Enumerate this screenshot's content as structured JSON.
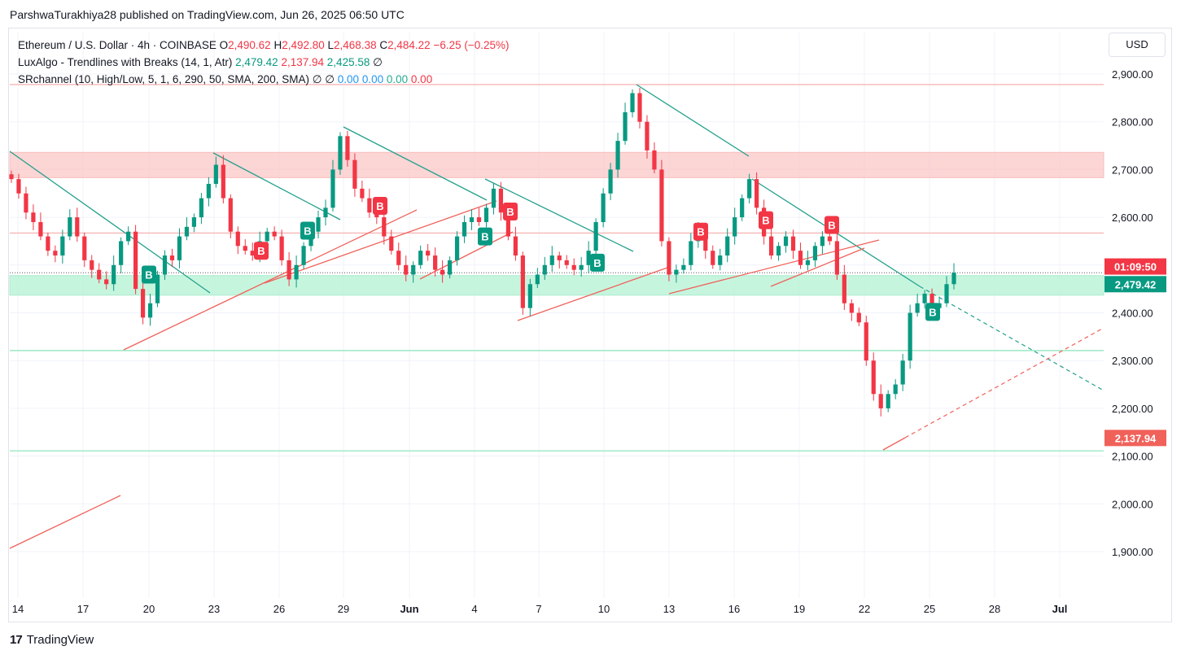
{
  "header": {
    "published": "ParshwaTurakhiya28 published on TradingView.com, Jun 26, 2025 06:50 UTC"
  },
  "legend": {
    "symbol": "Ethereum / U.S. Dollar · 4h · COINBASE",
    "o_label": "O",
    "o_value": "2,490.62",
    "h_label": "H",
    "h_value": "2,492.80",
    "l_label": "L",
    "l_value": "2,468.38",
    "c_label": "C",
    "c_value": "2,484.22",
    "change": "−6.25 (−0.25%)",
    "ind1_name": "LuxAlgo - Trendlines with Breaks (14, 1, Atr)",
    "ind1_v1": "2,479.42",
    "ind1_v2": "2,137.94",
    "ind1_v3": "2,425.58",
    "ind1_v4": "∅",
    "ind2_name": "SRchannel (10, High/Low, 5, 1, 6, 290, 50, SMA, 200, SMA)",
    "ind2_v1": "∅",
    "ind2_v2": "∅",
    "ind2_v3": "0.00",
    "ind2_v4": "0.00",
    "ind2_v5": "0.00",
    "ind2_v6": "0.00"
  },
  "currency": "USD",
  "footer": {
    "brand": "TradingView",
    "logo": "17"
  },
  "colors": {
    "up": "#089981",
    "down": "#f23645",
    "trend_down": "#22a08c",
    "trend_up": "#f0615a",
    "resistance_zone": "#fcc7c7",
    "support_zone": "#b4f2d3"
  },
  "chart_data": {
    "type": "candlestick",
    "title": "Ethereum / U.S. Dollar · 4h · COINBASE",
    "x_ticks": [
      "14",
      "17",
      "20",
      "23",
      "26",
      "29",
      "Jun",
      "4",
      "7",
      "10",
      "13",
      "16",
      "19",
      "22",
      "25",
      "28",
      "Jul"
    ],
    "y_ticks": [
      "2,900.00",
      "2,800.00",
      "2,700.00",
      "2,600.00",
      "2,500.00",
      "2,400.00",
      "2,300.00",
      "2,200.00",
      "2,100.00",
      "2,000.00",
      "1,900.00"
    ],
    "y_range": [
      1850,
      2950
    ],
    "price_labels": {
      "countdown": "01:09:50",
      "last": "2,479.42",
      "lower": "2,137.94"
    },
    "zones": [
      {
        "name": "resistance",
        "from": 2683,
        "to": 2736
      },
      {
        "name": "support",
        "from": 2437,
        "to": 2478
      }
    ],
    "levels": [
      2878,
      2567,
      2321,
      2111
    ],
    "signals": [
      {
        "label": "B",
        "side": "up",
        "x": "May 19",
        "price": 2480
      },
      {
        "label": "B",
        "side": "down",
        "x": "May 25",
        "price": 2530
      },
      {
        "label": "B",
        "side": "up",
        "x": "May 27",
        "price": 2572
      },
      {
        "label": "B",
        "side": "down",
        "x": "May 30",
        "price": 2624
      },
      {
        "label": "B",
        "side": "up",
        "x": "Jun 4",
        "price": 2560
      },
      {
        "label": "B",
        "side": "down",
        "x": "Jun 5",
        "price": 2612
      },
      {
        "label": "B",
        "side": "up",
        "x": "Jun 9",
        "price": 2505
      },
      {
        "label": "B",
        "side": "down",
        "x": "Jun 14",
        "price": 2570
      },
      {
        "label": "B",
        "side": "down",
        "x": "Jun 17",
        "price": 2594
      },
      {
        "label": "B",
        "side": "down",
        "x": "Jun 20",
        "price": 2584
      },
      {
        "label": "B",
        "side": "up",
        "x": "Jun 25",
        "price": 2402
      }
    ],
    "closes": [
      2680,
      2650,
      2610,
      2590,
      2560,
      2530,
      2520,
      2560,
      2600,
      2560,
      2510,
      2490,
      2470,
      2460,
      2500,
      2550,
      2570,
      2450,
      2390,
      2420,
      2480,
      2520,
      2510,
      2560,
      2580,
      2600,
      2640,
      2670,
      2710,
      2640,
      2570,
      2540,
      2530,
      2520,
      2550,
      2570,
      2560,
      2510,
      2470,
      2500,
      2540,
      2570,
      2600,
      2620,
      2700,
      2770,
      2720,
      2660,
      2640,
      2610,
      2600,
      2560,
      2530,
      2500,
      2480,
      2500,
      2530,
      2520,
      2490,
      2480,
      2510,
      2560,
      2590,
      2600,
      2590,
      2620,
      2660,
      2610,
      2560,
      2520,
      2410,
      2460,
      2480,
      2500,
      2520,
      2510,
      2500,
      2490,
      2500,
      2530,
      2590,
      2650,
      2700,
      2760,
      2820,
      2860,
      2800,
      2740,
      2700,
      2550,
      2480,
      2490,
      2500,
      2550,
      2570,
      2530,
      2500,
      2520,
      2560,
      2600,
      2640,
      2680,
      2620,
      2560,
      2520,
      2540,
      2560,
      2530,
      2500,
      2510,
      2540,
      2560,
      2550,
      2480,
      2420,
      2400,
      2380,
      2300,
      2230,
      2200,
      2230,
      2250,
      2300,
      2400,
      2420,
      2440,
      2410,
      2420,
      2460,
      2484
    ]
  }
}
